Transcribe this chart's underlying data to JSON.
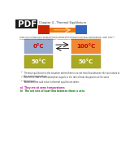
{
  "title": "Chapter 4 - Thermal Equilibrium",
  "bg_color": "#ffffff",
  "equil_color": "#aaaa22",
  "box1_temp": "0°C",
  "box2_temp": "100°C",
  "box3_temp": "50°C",
  "box4_temp": "50°C",
  "body_text": "When two substances having different temperatures are introduced or kept together, heat energy flows from a substance at higher temperature to a substance at lower temperature. After, heat continues to flow between them their temperatures are equalized.",
  "bullets": [
    "Thermal equilibrium is the situation where there is no net heat flow between the two bodies at the same temperature.",
    "Heat is the rate of heat absorption equals to the rate of heat dissipation at the same temperature.",
    "Two bodies are said to be in thermal equilibrium when:"
  ],
  "annotation_a": "a)  They are at same temperatures",
  "annotation_b": "b)  The net rate of heat flow between them is zero.",
  "annotation_a_color": "#cc0099",
  "annotation_b_color": "#007700",
  "thermo_red": "#cc2200",
  "thermo_blue": "#3366bb",
  "thermo_bar_color": "#ee7700",
  "blue_box_color": "#99aacc",
  "orange_box_color": "#ee8833",
  "pdf_bg": "#1a1a1a",
  "title_color": "#333333"
}
